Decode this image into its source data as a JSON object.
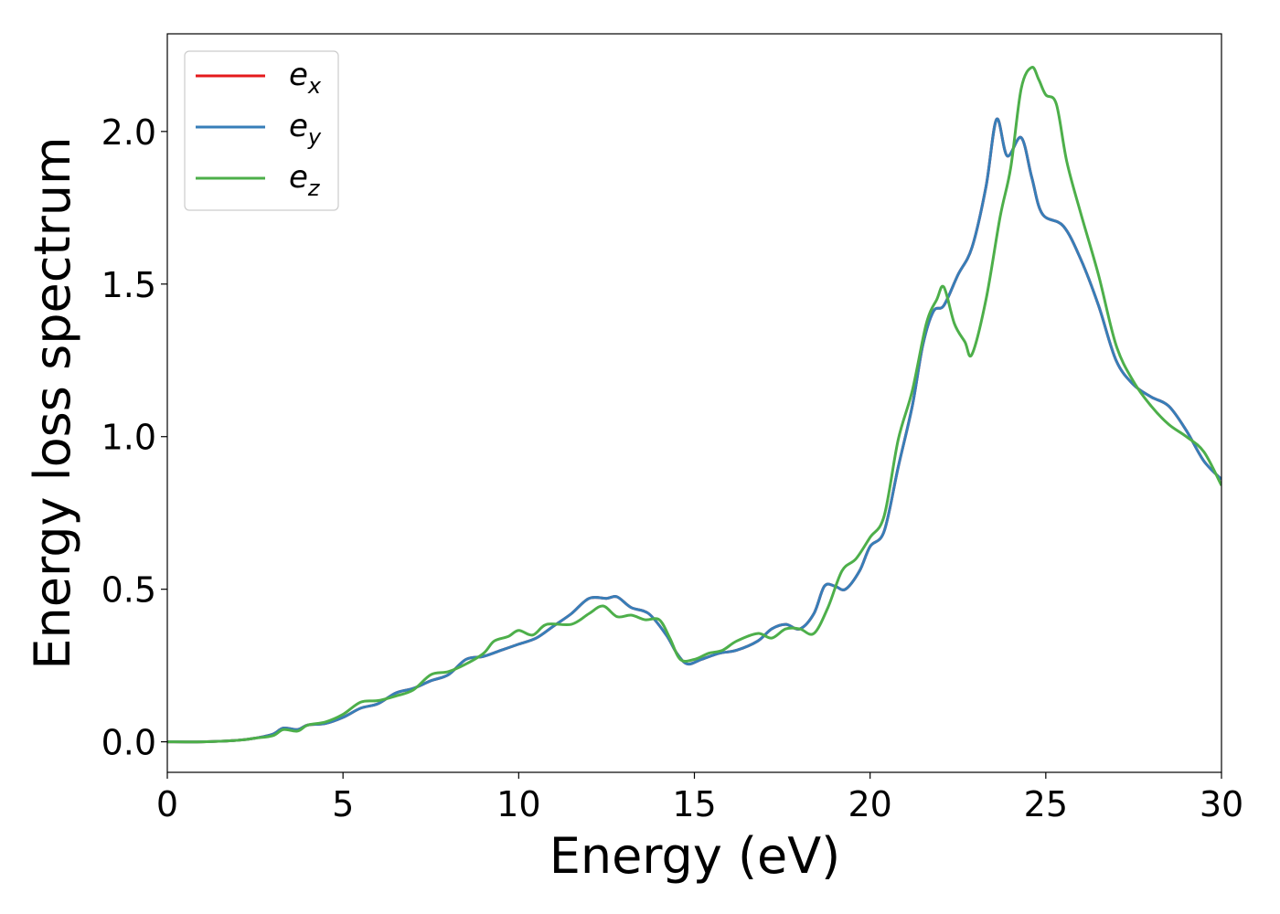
{
  "chart_data": {
    "type": "line",
    "xlabel": "Energy (eV)",
    "ylabel": "Energy loss spectrum",
    "xlim": [
      0,
      30
    ],
    "ylim": [
      -0.1,
      2.32
    ],
    "xticks": [
      0,
      5,
      10,
      15,
      20,
      25,
      30
    ],
    "xtick_labels": [
      "0",
      "5",
      "10",
      "15",
      "20",
      "25",
      "30"
    ],
    "yticks": [
      0.0,
      0.5,
      1.0,
      1.5,
      2.0
    ],
    "ytick_labels": [
      "0.0",
      "0.5",
      "1.0",
      "1.5",
      "2.0"
    ],
    "grid": false,
    "legend_position": "top-left",
    "series": [
      {
        "name": "e",
        "subscript": "x",
        "color": "#e41a1c",
        "points": [
          [
            0,
            0
          ],
          [
            1,
            0
          ],
          [
            2,
            0.005
          ],
          [
            2.5,
            0.012
          ],
          [
            3,
            0.025
          ],
          [
            3.3,
            0.045
          ],
          [
            3.7,
            0.04
          ],
          [
            4,
            0.055
          ],
          [
            4.5,
            0.06
          ],
          [
            5,
            0.08
          ],
          [
            5.5,
            0.11
          ],
          [
            6,
            0.125
          ],
          [
            6.5,
            0.16
          ],
          [
            7,
            0.175
          ],
          [
            7.5,
            0.2
          ],
          [
            8,
            0.22
          ],
          [
            8.5,
            0.27
          ],
          [
            9,
            0.28
          ],
          [
            9.5,
            0.3
          ],
          [
            10,
            0.32
          ],
          [
            10.5,
            0.34
          ],
          [
            11,
            0.38
          ],
          [
            11.5,
            0.42
          ],
          [
            12,
            0.47
          ],
          [
            12.5,
            0.47
          ],
          [
            12.8,
            0.475
          ],
          [
            13.2,
            0.44
          ],
          [
            13.7,
            0.42
          ],
          [
            14.2,
            0.35
          ],
          [
            14.5,
            0.29
          ],
          [
            14.8,
            0.255
          ],
          [
            15.2,
            0.27
          ],
          [
            15.7,
            0.29
          ],
          [
            16.2,
            0.3
          ],
          [
            16.8,
            0.33
          ],
          [
            17.2,
            0.37
          ],
          [
            17.6,
            0.385
          ],
          [
            18,
            0.37
          ],
          [
            18.4,
            0.42
          ],
          [
            18.7,
            0.51
          ],
          [
            19,
            0.51
          ],
          [
            19.3,
            0.5
          ],
          [
            19.7,
            0.56
          ],
          [
            20,
            0.64
          ],
          [
            20.4,
            0.69
          ],
          [
            20.8,
            0.9
          ],
          [
            21.2,
            1.1
          ],
          [
            21.5,
            1.3
          ],
          [
            21.8,
            1.41
          ],
          [
            22.1,
            1.43
          ],
          [
            22.5,
            1.53
          ],
          [
            22.9,
            1.62
          ],
          [
            23.3,
            1.82
          ],
          [
            23.6,
            2.04
          ],
          [
            23.9,
            1.92
          ],
          [
            24.3,
            1.98
          ],
          [
            24.6,
            1.85
          ],
          [
            24.9,
            1.73
          ],
          [
            25.5,
            1.69
          ],
          [
            26,
            1.58
          ],
          [
            26.5,
            1.43
          ],
          [
            27,
            1.25
          ],
          [
            27.5,
            1.17
          ],
          [
            28,
            1.13
          ],
          [
            28.5,
            1.1
          ],
          [
            29,
            1.02
          ],
          [
            29.5,
            0.92
          ],
          [
            30,
            0.86
          ]
        ]
      },
      {
        "name": "e",
        "subscript": "y",
        "color": "#377eb8",
        "points": [
          [
            0,
            0
          ],
          [
            1,
            0
          ],
          [
            2,
            0.005
          ],
          [
            2.5,
            0.012
          ],
          [
            3,
            0.025
          ],
          [
            3.3,
            0.045
          ],
          [
            3.7,
            0.04
          ],
          [
            4,
            0.055
          ],
          [
            4.5,
            0.06
          ],
          [
            5,
            0.08
          ],
          [
            5.5,
            0.11
          ],
          [
            6,
            0.125
          ],
          [
            6.5,
            0.16
          ],
          [
            7,
            0.175
          ],
          [
            7.5,
            0.2
          ],
          [
            8,
            0.22
          ],
          [
            8.5,
            0.27
          ],
          [
            9,
            0.28
          ],
          [
            9.5,
            0.3
          ],
          [
            10,
            0.32
          ],
          [
            10.5,
            0.34
          ],
          [
            11,
            0.38
          ],
          [
            11.5,
            0.42
          ],
          [
            12,
            0.47
          ],
          [
            12.5,
            0.47
          ],
          [
            12.8,
            0.475
          ],
          [
            13.2,
            0.44
          ],
          [
            13.7,
            0.42
          ],
          [
            14.2,
            0.35
          ],
          [
            14.5,
            0.29
          ],
          [
            14.8,
            0.255
          ],
          [
            15.2,
            0.27
          ],
          [
            15.7,
            0.29
          ],
          [
            16.2,
            0.3
          ],
          [
            16.8,
            0.33
          ],
          [
            17.2,
            0.37
          ],
          [
            17.6,
            0.385
          ],
          [
            18,
            0.37
          ],
          [
            18.4,
            0.42
          ],
          [
            18.7,
            0.51
          ],
          [
            19,
            0.51
          ],
          [
            19.3,
            0.5
          ],
          [
            19.7,
            0.56
          ],
          [
            20,
            0.64
          ],
          [
            20.4,
            0.69
          ],
          [
            20.8,
            0.9
          ],
          [
            21.2,
            1.1
          ],
          [
            21.5,
            1.3
          ],
          [
            21.8,
            1.41
          ],
          [
            22.1,
            1.43
          ],
          [
            22.5,
            1.53
          ],
          [
            22.9,
            1.62
          ],
          [
            23.3,
            1.82
          ],
          [
            23.6,
            2.04
          ],
          [
            23.9,
            1.92
          ],
          [
            24.3,
            1.98
          ],
          [
            24.6,
            1.85
          ],
          [
            24.9,
            1.73
          ],
          [
            25.5,
            1.69
          ],
          [
            26,
            1.58
          ],
          [
            26.5,
            1.43
          ],
          [
            27,
            1.25
          ],
          [
            27.5,
            1.17
          ],
          [
            28,
            1.13
          ],
          [
            28.5,
            1.1
          ],
          [
            29,
            1.02
          ],
          [
            29.5,
            0.92
          ],
          [
            30,
            0.86
          ]
        ]
      },
      {
        "name": "e",
        "subscript": "z",
        "color": "#4daf4a",
        "points": [
          [
            0,
            0
          ],
          [
            1,
            0
          ],
          [
            2,
            0.005
          ],
          [
            2.5,
            0.012
          ],
          [
            3,
            0.02
          ],
          [
            3.3,
            0.04
          ],
          [
            3.7,
            0.035
          ],
          [
            4,
            0.055
          ],
          [
            4.5,
            0.065
          ],
          [
            5,
            0.09
          ],
          [
            5.5,
            0.13
          ],
          [
            6,
            0.135
          ],
          [
            6.5,
            0.15
          ],
          [
            7,
            0.17
          ],
          [
            7.5,
            0.22
          ],
          [
            8,
            0.23
          ],
          [
            8.5,
            0.255
          ],
          [
            9,
            0.29
          ],
          [
            9.3,
            0.33
          ],
          [
            9.7,
            0.345
          ],
          [
            10,
            0.365
          ],
          [
            10.4,
            0.35
          ],
          [
            10.8,
            0.385
          ],
          [
            11.5,
            0.385
          ],
          [
            12,
            0.42
          ],
          [
            12.4,
            0.445
          ],
          [
            12.8,
            0.41
          ],
          [
            13.2,
            0.415
          ],
          [
            13.6,
            0.4
          ],
          [
            14,
            0.4
          ],
          [
            14.3,
            0.34
          ],
          [
            14.6,
            0.27
          ],
          [
            15,
            0.27
          ],
          [
            15.4,
            0.29
          ],
          [
            15.8,
            0.3
          ],
          [
            16.2,
            0.33
          ],
          [
            16.8,
            0.355
          ],
          [
            17.2,
            0.34
          ],
          [
            17.6,
            0.37
          ],
          [
            18,
            0.37
          ],
          [
            18.4,
            0.355
          ],
          [
            18.8,
            0.44
          ],
          [
            19.2,
            0.56
          ],
          [
            19.6,
            0.6
          ],
          [
            20,
            0.67
          ],
          [
            20.4,
            0.74
          ],
          [
            20.8,
            0.99
          ],
          [
            21.2,
            1.15
          ],
          [
            21.6,
            1.37
          ],
          [
            21.9,
            1.45
          ],
          [
            22.1,
            1.49
          ],
          [
            22.4,
            1.37
          ],
          [
            22.7,
            1.31
          ],
          [
            22.9,
            1.27
          ],
          [
            23.3,
            1.45
          ],
          [
            23.7,
            1.72
          ],
          [
            24,
            1.88
          ],
          [
            24.3,
            2.14
          ],
          [
            24.6,
            2.21
          ],
          [
            24.8,
            2.17
          ],
          [
            25,
            2.12
          ],
          [
            25.3,
            2.09
          ],
          [
            25.6,
            1.9
          ],
          [
            26,
            1.73
          ],
          [
            26.5,
            1.53
          ],
          [
            27,
            1.3
          ],
          [
            27.5,
            1.18
          ],
          [
            28,
            1.1
          ],
          [
            28.5,
            1.04
          ],
          [
            29,
            1.0
          ],
          [
            29.5,
            0.95
          ],
          [
            30,
            0.84
          ]
        ]
      }
    ]
  }
}
